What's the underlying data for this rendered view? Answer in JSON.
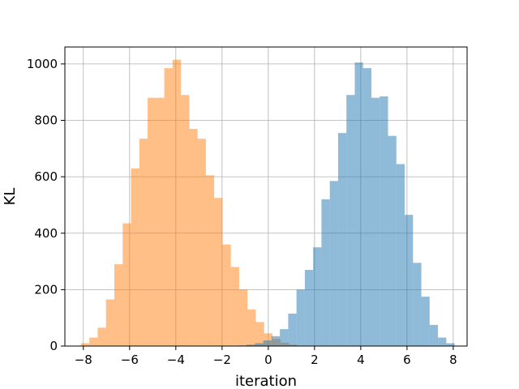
{
  "chart_data": {
    "type": "bar",
    "title": "",
    "xlabel": "iteration",
    "ylabel": "KL",
    "xlim": [
      -8.8,
      8.6
    ],
    "ylim": [
      0,
      1060
    ],
    "x_ticks": [
      -8,
      -6,
      -4,
      -2,
      0,
      2,
      4,
      6,
      8
    ],
    "x_tick_labels": [
      "−8",
      "−6",
      "−4",
      "−2",
      "0",
      "2",
      "4",
      "6",
      "8"
    ],
    "y_ticks": [
      0,
      200,
      400,
      600,
      800,
      1000
    ],
    "y_tick_labels": [
      "0",
      "200",
      "400",
      "600",
      "800",
      "1000"
    ],
    "grid": true,
    "legend": "none",
    "series": [
      {
        "color": "#ff7f0e",
        "opacity": 0.5,
        "bin_start": -8.1,
        "bin_width": 0.36,
        "counts": [
          10,
          30,
          65,
          165,
          290,
          435,
          630,
          735,
          880,
          880,
          985,
          1015,
          890,
          770,
          735,
          605,
          525,
          360,
          280,
          200,
          130,
          85,
          45,
          25,
          12,
          5
        ]
      },
      {
        "color": "#1f77b4",
        "opacity": 0.5,
        "bin_start": -1.3,
        "bin_width": 0.36,
        "counts": [
          2,
          5,
          10,
          20,
          35,
          60,
          115,
          200,
          270,
          350,
          520,
          585,
          755,
          890,
          1005,
          985,
          880,
          885,
          745,
          645,
          465,
          295,
          175,
          75,
          30,
          10
        ]
      }
    ]
  }
}
